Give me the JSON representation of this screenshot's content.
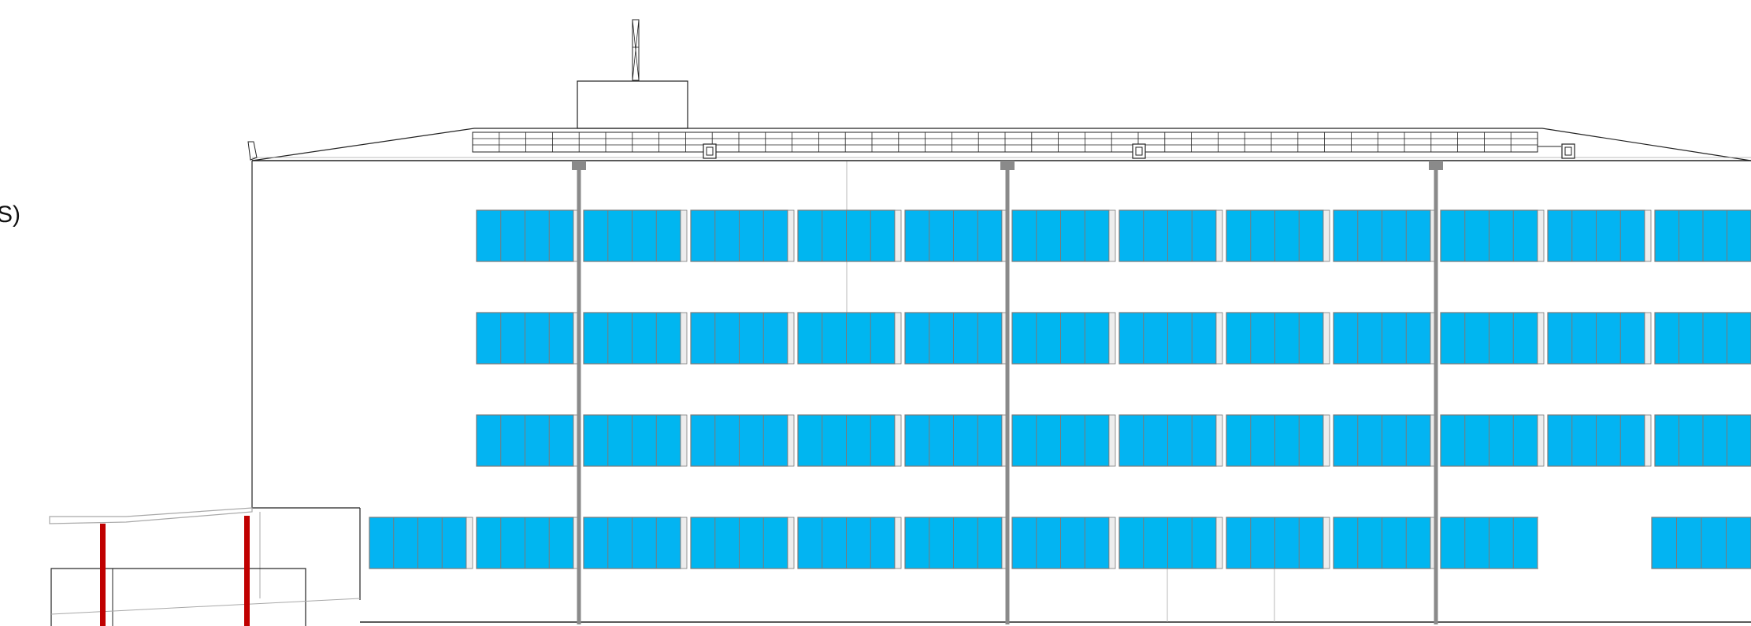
{
  "drawing": {
    "edge_label": "S)"
  },
  "colors": {
    "glazing": "#03b4f2",
    "glazing_alt": "#00b6f0",
    "frame": "#7a7a7a",
    "pier": "#ededed",
    "downpipe": "#8a8a8a",
    "canopy_column": "#c00000",
    "outline": "#222222",
    "light_line": "#a8a8a8",
    "background": "#ffffff"
  }
}
